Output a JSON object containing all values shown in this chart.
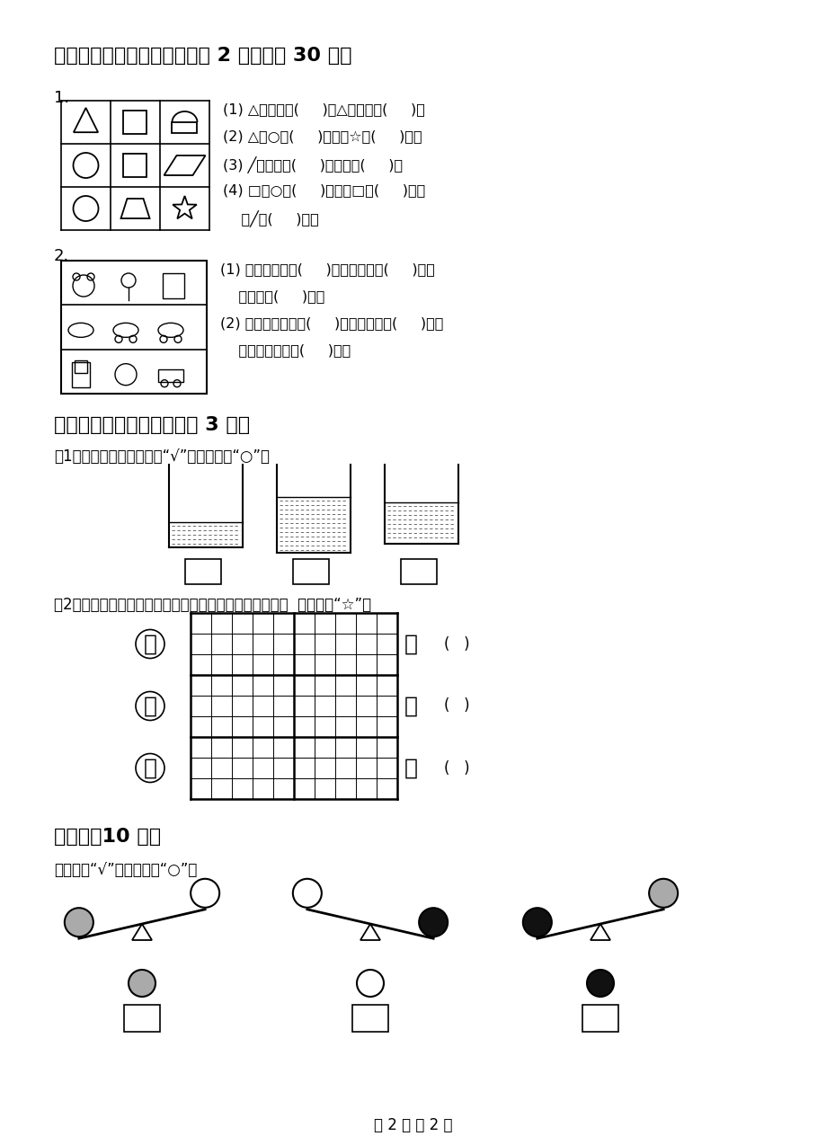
{
  "bg_color": "#ffffff",
  "title_section4": "四、填一填，说一说。（每空 2 分，共计 30 分）",
  "title_section5": "五、按要求画一画。（每题 3 分）",
  "title_section6": "附加题（10 分）",
  "sub_section6": "最重的画“√”，最轻的画“○”。",
  "sub_section5_1": "（1）杯子里的水最多的画“√”，最少的画“○”。",
  "sub_section5_2": "（2）三只兔子跑的一样快，哪只兔子最先吃到萝卜？在（  ）里画上“☆”。",
  "footer": "第 2 页 共 2 页"
}
